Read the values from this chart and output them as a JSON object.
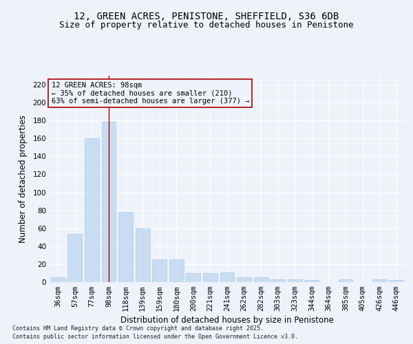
{
  "title_line1": "12, GREEN ACRES, PENISTONE, SHEFFIELD, S36 6DB",
  "title_line2": "Size of property relative to detached houses in Penistone",
  "xlabel": "Distribution of detached houses by size in Penistone",
  "ylabel": "Number of detached properties",
  "categories": [
    "36sqm",
    "57sqm",
    "77sqm",
    "98sqm",
    "118sqm",
    "139sqm",
    "159sqm",
    "180sqm",
    "200sqm",
    "221sqm",
    "241sqm",
    "262sqm",
    "282sqm",
    "303sqm",
    "323sqm",
    "344sqm",
    "364sqm",
    "385sqm",
    "405sqm",
    "426sqm",
    "446sqm"
  ],
  "values": [
    5,
    54,
    160,
    179,
    78,
    60,
    25,
    25,
    10,
    10,
    11,
    5,
    5,
    3,
    3,
    2,
    0,
    3,
    0,
    3,
    2
  ],
  "bar_color": "#c9ddf2",
  "bar_edge_color": "#aec8e8",
  "highlight_line_index": 3,
  "highlight_line_color": "#aa0000",
  "ylim": [
    0,
    230
  ],
  "yticks": [
    0,
    20,
    40,
    60,
    80,
    100,
    120,
    140,
    160,
    180,
    200,
    220
  ],
  "annotation_text": "12 GREEN ACRES: 98sqm\n← 35% of detached houses are smaller (210)\n63% of semi-detached houses are larger (377) →",
  "annotation_box_color": "#aa0000",
  "footnote1": "Contains HM Land Registry data © Crown copyright and database right 2025.",
  "footnote2": "Contains public sector information licensed under the Open Government Licence v3.0.",
  "background_color": "#eef2fa",
  "grid_color": "#ffffff",
  "title_fontsize": 10,
  "subtitle_fontsize": 9,
  "axis_label_fontsize": 8.5,
  "tick_fontsize": 7.5,
  "annotation_fontsize": 7.5,
  "footnote_fontsize": 6.0
}
